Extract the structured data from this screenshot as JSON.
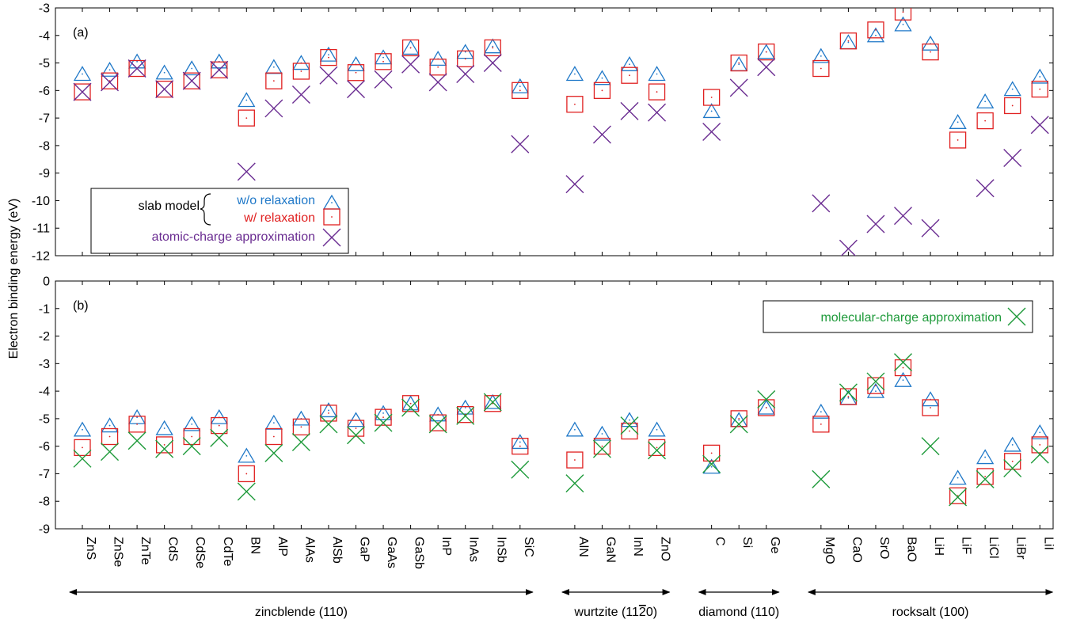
{
  "colors": {
    "wo": "#1f78c8",
    "w": "#e02020",
    "atomic": "#6a2c91",
    "molecular": "#1e9a3a"
  },
  "chart_data": [
    {
      "type": "scatter",
      "panel_label": "(a)",
      "ylabel": "Electron binding energy (eV)",
      "ylim": [
        -12,
        -3
      ],
      "yticks": [
        "-3",
        "-4",
        "-5",
        "-6",
        "-7",
        "-8",
        "-9",
        "-10",
        "-11",
        "-12"
      ],
      "categories": [
        "ZnS",
        "ZnSe",
        "ZnTe",
        "CdS",
        "CdSe",
        "CdTe",
        "BN",
        "AlP",
        "AlAs",
        "AlSb",
        "GaP",
        "GaAs",
        "GaSb",
        "InP",
        "InAs",
        "InSb",
        "SiC",
        "AlN",
        "GaN",
        "InN",
        "ZnO",
        "C",
        "Si",
        "Ge",
        "MgO",
        "CaO",
        "SrO",
        "BaO",
        "LiH",
        "LiF",
        "LiCl",
        "LiBr",
        "LiI"
      ],
      "legend": {
        "bracket_label": "slab model",
        "entries": [
          "w/o relaxation",
          "w/ relaxation",
          "atomic-charge approximation"
        ]
      },
      "series": [
        {
          "name": "w/o relaxation",
          "marker": "triangle",
          "values": [
            -5.4,
            -5.25,
            -4.95,
            -5.35,
            -5.2,
            -4.95,
            -6.35,
            -5.15,
            -5.0,
            -4.7,
            -5.05,
            -4.8,
            -4.45,
            -4.85,
            -4.6,
            -4.4,
            -5.85,
            -5.4,
            -5.55,
            -5.05,
            -5.4,
            -6.75,
            -5.05,
            -4.6,
            -4.75,
            -4.25,
            -4.0,
            -3.6,
            -4.3,
            -7.15,
            -6.4,
            -5.95,
            -5.5
          ]
        },
        {
          "name": "w/ relaxation",
          "marker": "square",
          "values": [
            -6.05,
            -5.65,
            -5.2,
            -5.95,
            -5.65,
            -5.25,
            -7.0,
            -5.65,
            -5.3,
            -4.8,
            -5.35,
            -4.95,
            -4.45,
            -5.15,
            -4.85,
            -4.45,
            -6.0,
            -6.5,
            -6.0,
            -5.45,
            -6.05,
            -6.25,
            -5.0,
            -4.6,
            -5.2,
            -4.2,
            -3.8,
            -3.15,
            -4.6,
            -7.8,
            -7.1,
            -6.55,
            -5.95
          ]
        },
        {
          "name": "atomic-charge approximation",
          "marker": "x",
          "values": [
            -6.05,
            -5.7,
            -5.2,
            -5.95,
            -5.65,
            -5.25,
            -8.95,
            -6.65,
            -6.15,
            -5.45,
            -5.95,
            -5.6,
            -5.05,
            -5.7,
            -5.4,
            -5.0,
            -7.95,
            -9.4,
            -7.6,
            -6.75,
            -6.8,
            -7.5,
            -5.9,
            -5.15,
            -10.1,
            -11.75,
            -10.85,
            -10.55,
            -11.0,
            null,
            -9.55,
            -8.45,
            -7.25
          ]
        }
      ]
    },
    {
      "type": "scatter",
      "panel_label": "(b)",
      "ylim": [
        -9,
        0
      ],
      "yticks": [
        "0",
        "-1",
        "-2",
        "-3",
        "-4",
        "-5",
        "-6",
        "-7",
        "-8",
        "-9"
      ],
      "categories": [
        "ZnS",
        "ZnSe",
        "ZnTe",
        "CdS",
        "CdSe",
        "CdTe",
        "BN",
        "AlP",
        "AlAs",
        "AlSb",
        "GaP",
        "GaAs",
        "GaSb",
        "InP",
        "InAs",
        "InSb",
        "SiC",
        "AlN",
        "GaN",
        "InN",
        "ZnO",
        "C",
        "Si",
        "Ge",
        "MgO",
        "CaO",
        "SrO",
        "BaO",
        "LiH",
        "LiF",
        "LiCl",
        "LiBr",
        "LiI"
      ],
      "legend": {
        "entries": [
          "molecular-charge approximation"
        ]
      },
      "series": [
        {
          "name": "w/o relaxation",
          "marker": "triangle",
          "values": [
            -5.4,
            -5.25,
            -4.95,
            -5.35,
            -5.2,
            -4.95,
            -6.35,
            -5.15,
            -5.0,
            -4.7,
            -5.05,
            -4.8,
            -4.45,
            -4.85,
            -4.6,
            -4.4,
            -5.85,
            -5.4,
            -5.55,
            -5.05,
            -5.4,
            -6.75,
            -5.05,
            -4.6,
            -4.75,
            -4.25,
            -4.0,
            -3.6,
            -4.3,
            -7.15,
            -6.4,
            -5.95,
            -5.5
          ]
        },
        {
          "name": "w/ relaxation",
          "marker": "square",
          "values": [
            -6.05,
            -5.65,
            -5.2,
            -5.95,
            -5.65,
            -5.25,
            -7.0,
            -5.65,
            -5.3,
            -4.8,
            -5.35,
            -4.95,
            -4.45,
            -5.15,
            -4.85,
            -4.45,
            -6.0,
            -6.5,
            -6.0,
            -5.45,
            -6.05,
            -6.25,
            -5.0,
            -4.6,
            -5.2,
            -4.2,
            -3.8,
            -3.15,
            -4.6,
            -7.8,
            -7.1,
            -6.55,
            -5.95
          ]
        },
        {
          "name": "molecular-charge approximation",
          "marker": "x",
          "values": [
            -6.45,
            -6.2,
            -5.8,
            -6.1,
            -6.0,
            -5.7,
            -7.65,
            -6.25,
            -5.85,
            -5.2,
            -5.6,
            -5.15,
            -4.6,
            -5.2,
            -4.9,
            -4.4,
            -6.85,
            -7.35,
            -6.1,
            -5.25,
            -6.15,
            -6.65,
            -5.2,
            -4.3,
            -7.2,
            -4.05,
            -3.65,
            -2.95,
            -6.0,
            -7.85,
            -7.2,
            -6.8,
            -6.3
          ]
        }
      ]
    }
  ],
  "groups": [
    {
      "label": "zincblende (110)",
      "first": 0,
      "last": 16
    },
    {
      "label": "wurtzite (11",
      "label_bar": "2",
      "label_end": "0)",
      "first": 17,
      "last": 20
    },
    {
      "label": "diamond (110)",
      "first": 21,
      "last": 23
    },
    {
      "label": "rocksalt (100)",
      "first": 24,
      "last": 32
    }
  ]
}
